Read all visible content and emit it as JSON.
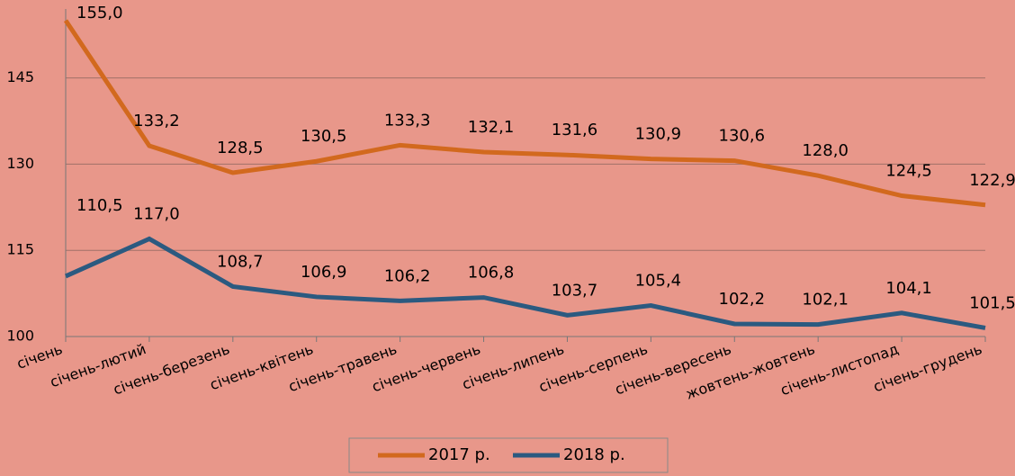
{
  "chart_data": {
    "type": "line",
    "categories": [
      "січень",
      "січень-лютий",
      "січень-березень",
      "січень-квітень",
      "січень-травень",
      "січень-червень",
      "січень-липень",
      "січень-серпень",
      "січень-вересень",
      "жовтень-жовтень",
      "січень-листопад",
      "січень-грудень"
    ],
    "series": [
      {
        "name": "2017 р.",
        "color": "#d2691e",
        "values": [
          155.0,
          133.2,
          128.5,
          130.5,
          133.3,
          132.1,
          131.6,
          130.9,
          130.6,
          128.0,
          124.5,
          122.9
        ],
        "value_labels": [
          "155,0",
          "133,2",
          "128,5",
          "130,5",
          "133,3",
          "132,1",
          "131,6",
          "130,9",
          "130,6",
          "128,0",
          "124,5",
          "122,9"
        ]
      },
      {
        "name": "2018 р.",
        "color": "#2b5a80",
        "values": [
          110.5,
          117.0,
          108.7,
          106.9,
          106.2,
          106.8,
          103.7,
          105.4,
          102.2,
          102.1,
          104.1,
          101.5
        ],
        "value_labels": [
          "110,5",
          "117,0",
          "108,7",
          "106,9",
          "106,2",
          "106,8",
          "103,7",
          "105,4",
          "102,2",
          "102,1",
          "104,1",
          "101,5"
        ]
      }
    ],
    "ylim": [
      100,
      157
    ],
    "yticks": [
      100,
      115,
      130,
      145
    ],
    "grid": true,
    "legend": "bottom"
  }
}
